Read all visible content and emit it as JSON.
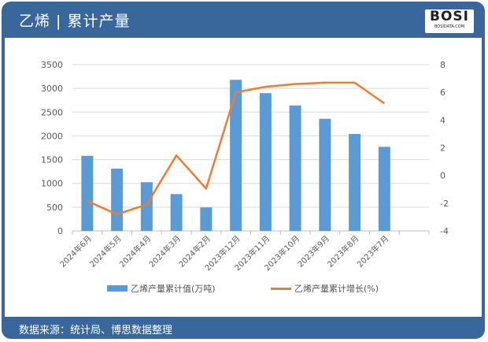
{
  "header": {
    "title": "乙烯 | 累计产量",
    "logo_text": "BOSI",
    "logo_sub": "BOSIDATA.COM"
  },
  "footer": {
    "source": "数据来源：统计局、博思数据整理"
  },
  "chart_data": {
    "type": "bar+line",
    "categories": [
      "2024年6月",
      "2024年5月",
      "2024年4月",
      "2024年3月",
      "2024年2月",
      "2023年12月",
      "2023年11月",
      "2023年10月",
      "2023年9月",
      "2023年8月",
      "2023年7月"
    ],
    "series": [
      {
        "name": "乙烯产量累计值(万吨)",
        "type": "bar",
        "axis": "left",
        "color": "#5b9bd5",
        "values": [
          1580,
          1310,
          1025,
          775,
          495,
          3180,
          2900,
          2640,
          2360,
          2040,
          1770
        ]
      },
      {
        "name": "乙烯产量累计增长(%)",
        "type": "line",
        "axis": "right",
        "color": "#ed7d31",
        "values": [
          -1.85,
          -2.8,
          -2.1,
          1.45,
          -0.95,
          6.0,
          6.4,
          6.6,
          6.7,
          6.7,
          5.2
        ]
      }
    ],
    "ylim_left": [
      0,
      3500
    ],
    "yticks_left": [
      0,
      500,
      1000,
      1500,
      2000,
      2500,
      3000,
      3500
    ],
    "ylim_right": [
      -4,
      8
    ],
    "yticks_right": [
      -4,
      -2,
      0,
      2,
      4,
      6,
      8
    ],
    "grid": true,
    "legend": "bottom"
  }
}
